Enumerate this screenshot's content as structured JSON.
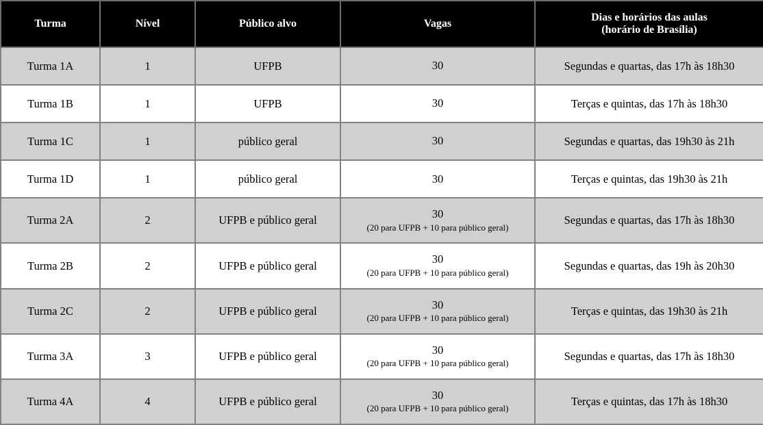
{
  "colors": {
    "header_bg": "#000000",
    "header_text": "#ffffff",
    "row_shaded": "#d0d0d0",
    "row_plain": "#ffffff",
    "border": "#828282"
  },
  "table": {
    "columns": [
      {
        "label": "Turma"
      },
      {
        "label": "Nível"
      },
      {
        "label": "Público alvo"
      },
      {
        "label": "Vagas"
      },
      {
        "label": "Dias e horários das aulas",
        "sublabel": "(horário de Brasília)"
      }
    ],
    "rows": [
      {
        "turma": "Turma 1A",
        "nivel": "1",
        "publico": "UFPB",
        "vagas": "30",
        "vagas_detail": "",
        "dias": "Segundas e quartas, das 17h às 18h30",
        "shaded": true
      },
      {
        "turma": "Turma 1B",
        "nivel": "1",
        "publico": "UFPB",
        "vagas": "30",
        "vagas_detail": "",
        "dias": "Terças e quintas, das 17h às 18h30",
        "shaded": false
      },
      {
        "turma": "Turma 1C",
        "nivel": "1",
        "publico": "público geral",
        "vagas": "30",
        "vagas_detail": "",
        "dias": "Segundas e quartas, das 19h30 às 21h",
        "shaded": true
      },
      {
        "turma": "Turma 1D",
        "nivel": "1",
        "publico": "público geral",
        "vagas": "30",
        "vagas_detail": "",
        "dias": "Terças e quintas, das 19h30 às 21h",
        "shaded": false
      },
      {
        "turma": "Turma 2A",
        "nivel": "2",
        "publico": "UFPB e público geral",
        "vagas": "30",
        "vagas_detail": "(20 para UFPB + 10 para público geral)",
        "dias": "Segundas e quartas, das 17h às 18h30",
        "shaded": true
      },
      {
        "turma": "Turma 2B",
        "nivel": "2",
        "publico": "UFPB e público geral",
        "vagas": "30",
        "vagas_detail": "(20 para UFPB + 10 para público geral)",
        "dias": "Segundas e quartas, das 19h às 20h30",
        "shaded": false
      },
      {
        "turma": "Turma 2C",
        "nivel": "2",
        "publico": "UFPB e público geral",
        "vagas": "30",
        "vagas_detail": "(20 para UFPB + 10 para público geral)",
        "dias": "Terças e quintas, das 19h30 às 21h",
        "shaded": true
      },
      {
        "turma": "Turma 3A",
        "nivel": "3",
        "publico": "UFPB e público geral",
        "vagas": "30",
        "vagas_detail": "(20 para UFPB + 10 para público geral)",
        "dias": "Segundas e quartas, das 17h às 18h30",
        "shaded": false
      },
      {
        "turma": "Turma 4A",
        "nivel": "4",
        "publico": "UFPB e público geral",
        "vagas": "30",
        "vagas_detail": "(20 para UFPB + 10 para público geral)",
        "dias": "Terças e quintas, das 17h às 18h30",
        "shaded": true
      }
    ]
  }
}
